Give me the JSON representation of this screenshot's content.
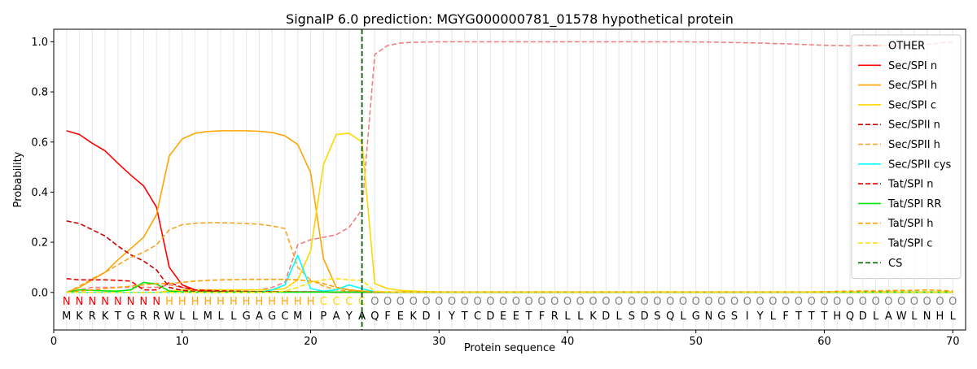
{
  "chart_data": {
    "type": "line",
    "title": "SignalP 6.0 prediction: MGYG000000781_01578 hypothetical protein",
    "xlabel": "Protein sequence",
    "ylabel": "Probability",
    "xlim": [
      0,
      71
    ],
    "ylim": [
      -0.15,
      1.05
    ],
    "xticks": [
      0,
      10,
      20,
      30,
      40,
      50,
      60,
      70
    ],
    "yticks": [
      0.0,
      0.2,
      0.4,
      0.6,
      0.8,
      1.0
    ],
    "ytick_labels": [
      "0.0",
      "0.2",
      "0.4",
      "0.6",
      "0.8",
      "1.0"
    ],
    "legend_position": "top-right",
    "cleavage_site": 24,
    "sequence": [
      "M",
      "K",
      "R",
      "K",
      "T",
      "G",
      "R",
      "R",
      "W",
      "L",
      "L",
      "M",
      "L",
      "L",
      "G",
      "A",
      "G",
      "C",
      "M",
      "I",
      "P",
      "A",
      "Y",
      "A",
      "Q",
      "F",
      "E",
      "K",
      "D",
      "I",
      "Y",
      "T",
      "C",
      "D",
      "E",
      "E",
      "T",
      "F",
      "R",
      "L",
      "L",
      "K",
      "D",
      "L",
      "S",
      "D",
      "S",
      "Q",
      "L",
      "G",
      "N",
      "G",
      "S",
      "I",
      "Y",
      "L",
      "F",
      "T",
      "T",
      "T",
      "H",
      "Q",
      "D",
      "L",
      "A",
      "W",
      "L",
      "N",
      "H",
      "L"
    ],
    "region_labels": [
      "N",
      "N",
      "N",
      "N",
      "N",
      "N",
      "N",
      "N",
      "H",
      "H",
      "H",
      "H",
      "H",
      "H",
      "H",
      "H",
      "H",
      "H",
      "H",
      "H",
      "C",
      "C",
      "C",
      "C",
      "O",
      "O",
      "O",
      "O",
      "O",
      "O",
      "O",
      "O",
      "O",
      "O",
      "O",
      "O",
      "O",
      "O",
      "O",
      "O",
      "O",
      "O",
      "O",
      "O",
      "O",
      "O",
      "O",
      "O",
      "O",
      "O",
      "O",
      "O",
      "O",
      "O",
      "O",
      "O",
      "O",
      "O",
      "O",
      "O",
      "O",
      "O",
      "O",
      "O",
      "O",
      "O",
      "O",
      "O",
      "O",
      "O"
    ],
    "region_colors": {
      "N": "#ff0000",
      "H": "#ffa500",
      "C": "#ffd700",
      "O": "#808080"
    },
    "series": [
      {
        "name": "OTHER",
        "color": "#f08080",
        "dash": true,
        "values": [
          0.0,
          0.01,
          0.02,
          0.02,
          0.02,
          0.02,
          0.02,
          0.02,
          0.03,
          0.02,
          0.01,
          0.01,
          0.01,
          0.01,
          0.01,
          0.01,
          0.02,
          0.04,
          0.19,
          0.21,
          0.22,
          0.23,
          0.26,
          0.33,
          0.95,
          0.985,
          0.995,
          0.998,
          0.999,
          1,
          1,
          1,
          1,
          1,
          1,
          1,
          1,
          1,
          1,
          1,
          1,
          1,
          1,
          1,
          1,
          1,
          1,
          1,
          1,
          0.999,
          0.999,
          0.998,
          0.997,
          0.996,
          0.995,
          0.993,
          0.992,
          0.99,
          0.988,
          0.986,
          0.985,
          0.984,
          0.985,
          0.985,
          0.985,
          0.986,
          0.988,
          0.99,
          0.995,
          1.0
        ]
      },
      {
        "name": "Sec/SPI n",
        "color": "#ff0000",
        "dash": false,
        "values": [
          0.645,
          0.63,
          0.595,
          0.565,
          0.515,
          0.468,
          0.425,
          0.34,
          0.1,
          0.03,
          0.01,
          0.005,
          0.003,
          0.002,
          0.002,
          0.002,
          0.002,
          0.002,
          0.002,
          0.002,
          0.002,
          0.001,
          0.001,
          0.001,
          0.001,
          0.001,
          0.001,
          0.001,
          0.001,
          0.001,
          0.001,
          0.001,
          0.001,
          0.001,
          0.001,
          0.001,
          0.001,
          0.001,
          0.001,
          0.001,
          0.001,
          0.001,
          0.001,
          0.001,
          0.001,
          0.001,
          0.001,
          0.001,
          0.001,
          0.001,
          0.001,
          0.001,
          0.001,
          0.001,
          0.001,
          0.001,
          0.001,
          0.001,
          0.001,
          0.001,
          0.001,
          0.001,
          0.001,
          0.001,
          0.001,
          0.001,
          0.001,
          0.001,
          0.001,
          0.001
        ]
      },
      {
        "name": "Sec/SPI h",
        "color": "#ffa500",
        "dash": false,
        "values": [
          0.0,
          0.02,
          0.05,
          0.08,
          0.13,
          0.175,
          0.22,
          0.31,
          0.545,
          0.612,
          0.635,
          0.642,
          0.645,
          0.645,
          0.645,
          0.643,
          0.638,
          0.625,
          0.59,
          0.478,
          0.135,
          0.02,
          0.01,
          0.005,
          0.002,
          0.001,
          0.001,
          0.001,
          0.001,
          0.001,
          0.001,
          0.001,
          0.001,
          0.001,
          0.001,
          0.001,
          0.001,
          0.001,
          0.001,
          0.001,
          0.001,
          0.001,
          0.001,
          0.001,
          0.001,
          0.001,
          0.001,
          0.001,
          0.001,
          0.001,
          0.001,
          0.001,
          0.001,
          0.001,
          0.001,
          0.001,
          0.001,
          0.001,
          0.001,
          0.001,
          0.001,
          0.001,
          0.001,
          0.001,
          0.001,
          0.001,
          0.001,
          0.001,
          0.001,
          0.001
        ]
      },
      {
        "name": "Sec/SPI c",
        "color": "#ffd700",
        "dash": false,
        "values": [
          0.0,
          0.0,
          0.0,
          0.0,
          0.0,
          0.0,
          0.0,
          0.0,
          0.005,
          0.01,
          0.01,
          0.01,
          0.01,
          0.01,
          0.01,
          0.01,
          0.01,
          0.015,
          0.05,
          0.165,
          0.51,
          0.63,
          0.635,
          0.6,
          0.035,
          0.015,
          0.008,
          0.005,
          0.003,
          0.002,
          0.002,
          0.002,
          0.002,
          0.002,
          0.002,
          0.002,
          0.002,
          0.002,
          0.002,
          0.002,
          0.002,
          0.002,
          0.002,
          0.002,
          0.002,
          0.002,
          0.002,
          0.002,
          0.002,
          0.002,
          0.002,
          0.002,
          0.002,
          0.002,
          0.002,
          0.002,
          0.002,
          0.002,
          0.002,
          0.002,
          0.002,
          0.002,
          0.002,
          0.002,
          0.002,
          0.002,
          0.002,
          0.002,
          0.002,
          0.002
        ]
      },
      {
        "name": "Sec/SPII n",
        "color": "#cc0000",
        "dash": true,
        "values": [
          0.285,
          0.275,
          0.25,
          0.225,
          0.185,
          0.15,
          0.125,
          0.09,
          0.02,
          0.008,
          0.004,
          0.003,
          0.002,
          0.002,
          0.002,
          0.002,
          0.002,
          0.002,
          0.002,
          0.002,
          0.002,
          0.001,
          0.001,
          0.001,
          0.001,
          0.001,
          0.001,
          0.001,
          0.001,
          0.001,
          0.001,
          0.001,
          0.001,
          0.001,
          0.001,
          0.001,
          0.001,
          0.001,
          0.001,
          0.001,
          0.001,
          0.001,
          0.001,
          0.001,
          0.001,
          0.001,
          0.001,
          0.001,
          0.001,
          0.001,
          0.001,
          0.001,
          0.001,
          0.001,
          0.001,
          0.001,
          0.001,
          0.001,
          0.001,
          0.001,
          0.001,
          0.001,
          0.001,
          0.001,
          0.001,
          0.001,
          0.001,
          0.001,
          0.001,
          0.001
        ]
      },
      {
        "name": "Sec/SPII h",
        "color": "#f5a623",
        "dash": true,
        "values": [
          0.0,
          0.025,
          0.055,
          0.08,
          0.11,
          0.14,
          0.16,
          0.19,
          0.25,
          0.27,
          0.276,
          0.278,
          0.278,
          0.277,
          0.275,
          0.272,
          0.265,
          0.255,
          0.1,
          0.05,
          0.025,
          0.01,
          0.005,
          0.003,
          0.002,
          0.001,
          0.001,
          0.001,
          0.001,
          0.001,
          0.001,
          0.001,
          0.001,
          0.001,
          0.001,
          0.001,
          0.001,
          0.001,
          0.001,
          0.001,
          0.001,
          0.001,
          0.001,
          0.001,
          0.001,
          0.001,
          0.001,
          0.001,
          0.001,
          0.001,
          0.001,
          0.001,
          0.001,
          0.001,
          0.001,
          0.001,
          0.001,
          0.001,
          0.001,
          0.001,
          0.001,
          0.001,
          0.001,
          0.001,
          0.001,
          0.001,
          0.001,
          0.001,
          0.001,
          0.001
        ]
      },
      {
        "name": "Sec/SPII cys",
        "color": "#00ffff",
        "dash": false,
        "values": [
          0.0,
          0.0,
          0.0,
          0.0,
          0.0,
          0.0,
          0.0,
          0.0,
          0.0,
          0.0,
          0.0,
          0.0,
          0.0,
          0.0,
          0.0,
          0.0,
          0.01,
          0.03,
          0.148,
          0.015,
          0.005,
          0.01,
          0.03,
          0.015,
          0.002,
          0.001,
          0.001,
          0.001,
          0.001,
          0.001,
          0.001,
          0.001,
          0.001,
          0.001,
          0.001,
          0.001,
          0.001,
          0.001,
          0.001,
          0.001,
          0.001,
          0.001,
          0.001,
          0.001,
          0.001,
          0.001,
          0.001,
          0.001,
          0.001,
          0.001,
          0.001,
          0.001,
          0.001,
          0.001,
          0.001,
          0.001,
          0.001,
          0.001,
          0.001,
          0.001,
          0.001,
          0.001,
          0.001,
          0.001,
          0.001,
          0.001,
          0.001,
          0.001,
          0.001,
          0.001
        ]
      },
      {
        "name": "Tat/SPI n",
        "color": "#e60000",
        "dash": true,
        "values": [
          0.055,
          0.05,
          0.05,
          0.05,
          0.048,
          0.045,
          0.01,
          0.01,
          0.04,
          0.02,
          0.01,
          0.008,
          0.006,
          0.005,
          0.004,
          0.003,
          0.003,
          0.003,
          0.002,
          0.002,
          0.002,
          0.001,
          0.001,
          0.001,
          0.001,
          0.001,
          0.001,
          0.001,
          0.001,
          0.001,
          0.001,
          0.001,
          0.001,
          0.001,
          0.001,
          0.001,
          0.001,
          0.001,
          0.001,
          0.001,
          0.001,
          0.001,
          0.001,
          0.001,
          0.001,
          0.001,
          0.001,
          0.001,
          0.001,
          0.001,
          0.001,
          0.001,
          0.001,
          0.001,
          0.001,
          0.001,
          0.001,
          0.001,
          0.001,
          0.001,
          0.001,
          0.001,
          0.001,
          0.001,
          0.001,
          0.001,
          0.001,
          0.001,
          0.001,
          0.001
        ]
      },
      {
        "name": "Tat/SPI RR",
        "color": "#00e600",
        "dash": false,
        "values": [
          0.0,
          0.01,
          0.008,
          0.006,
          0.005,
          0.01,
          0.04,
          0.033,
          0.005,
          0.002,
          0.001,
          0.001,
          0.001,
          0.001,
          0.001,
          0.001,
          0.001,
          0.001,
          0.001,
          0.001,
          0.001,
          0.001,
          0.001,
          0.001,
          0.001,
          0.001,
          0.001,
          0.001,
          0.001,
          0.001,
          0.001,
          0.001,
          0.001,
          0.001,
          0.001,
          0.001,
          0.001,
          0.001,
          0.001,
          0.001,
          0.001,
          0.001,
          0.001,
          0.001,
          0.001,
          0.001,
          0.001,
          0.001,
          0.001,
          0.001,
          0.001,
          0.001,
          0.001,
          0.001,
          0.001,
          0.001,
          0.001,
          0.001,
          0.001,
          0.001,
          0.001,
          0.001,
          0.001,
          0.001,
          0.001,
          0.001,
          0.001,
          0.001,
          0.001,
          0.001
        ]
      },
      {
        "name": "Tat/SPI h",
        "color": "#ff9f00",
        "dash": true,
        "values": [
          0.0,
          0.005,
          0.01,
          0.015,
          0.02,
          0.025,
          0.03,
          0.035,
          0.035,
          0.04,
          0.045,
          0.048,
          0.05,
          0.051,
          0.052,
          0.052,
          0.052,
          0.052,
          0.05,
          0.045,
          0.035,
          0.02,
          0.01,
          0.005,
          0.002,
          0.002,
          0.002,
          0.002,
          0.002,
          0.002,
          0.002,
          0.002,
          0.002,
          0.002,
          0.002,
          0.002,
          0.002,
          0.002,
          0.002,
          0.002,
          0.002,
          0.002,
          0.002,
          0.002,
          0.002,
          0.002,
          0.002,
          0.002,
          0.002,
          0.002,
          0.002,
          0.002,
          0.002,
          0.002,
          0.002,
          0.002,
          0.002,
          0.002,
          0.002,
          0.003,
          0.004,
          0.005,
          0.006,
          0.006,
          0.007,
          0.008,
          0.008,
          0.01,
          0.008,
          0.005
        ]
      },
      {
        "name": "Tat/SPI c",
        "color": "#ffe000",
        "dash": true,
        "values": [
          0.0,
          0.0,
          0.0,
          0.0,
          0.0,
          0.0,
          0.0,
          0.0,
          0.0,
          0.0,
          0.0,
          0.0,
          0.0,
          0.0,
          0.0,
          0.0,
          0.0,
          0.005,
          0.02,
          0.04,
          0.05,
          0.055,
          0.05,
          0.048,
          0.005,
          0.002,
          0.001,
          0.001,
          0.001,
          0.001,
          0.001,
          0.001,
          0.001,
          0.001,
          0.001,
          0.001,
          0.001,
          0.001,
          0.001,
          0.001,
          0.001,
          0.001,
          0.001,
          0.001,
          0.001,
          0.001,
          0.001,
          0.001,
          0.001,
          0.001,
          0.001,
          0.001,
          0.001,
          0.001,
          0.001,
          0.001,
          0.001,
          0.001,
          0.001,
          0.001,
          0.001,
          0.001,
          0.001,
          0.001,
          0.001,
          0.001,
          0.001,
          0.001,
          0.001,
          0.001
        ]
      }
    ],
    "cs_legend": {
      "name": "CS",
      "color": "#006400"
    }
  }
}
